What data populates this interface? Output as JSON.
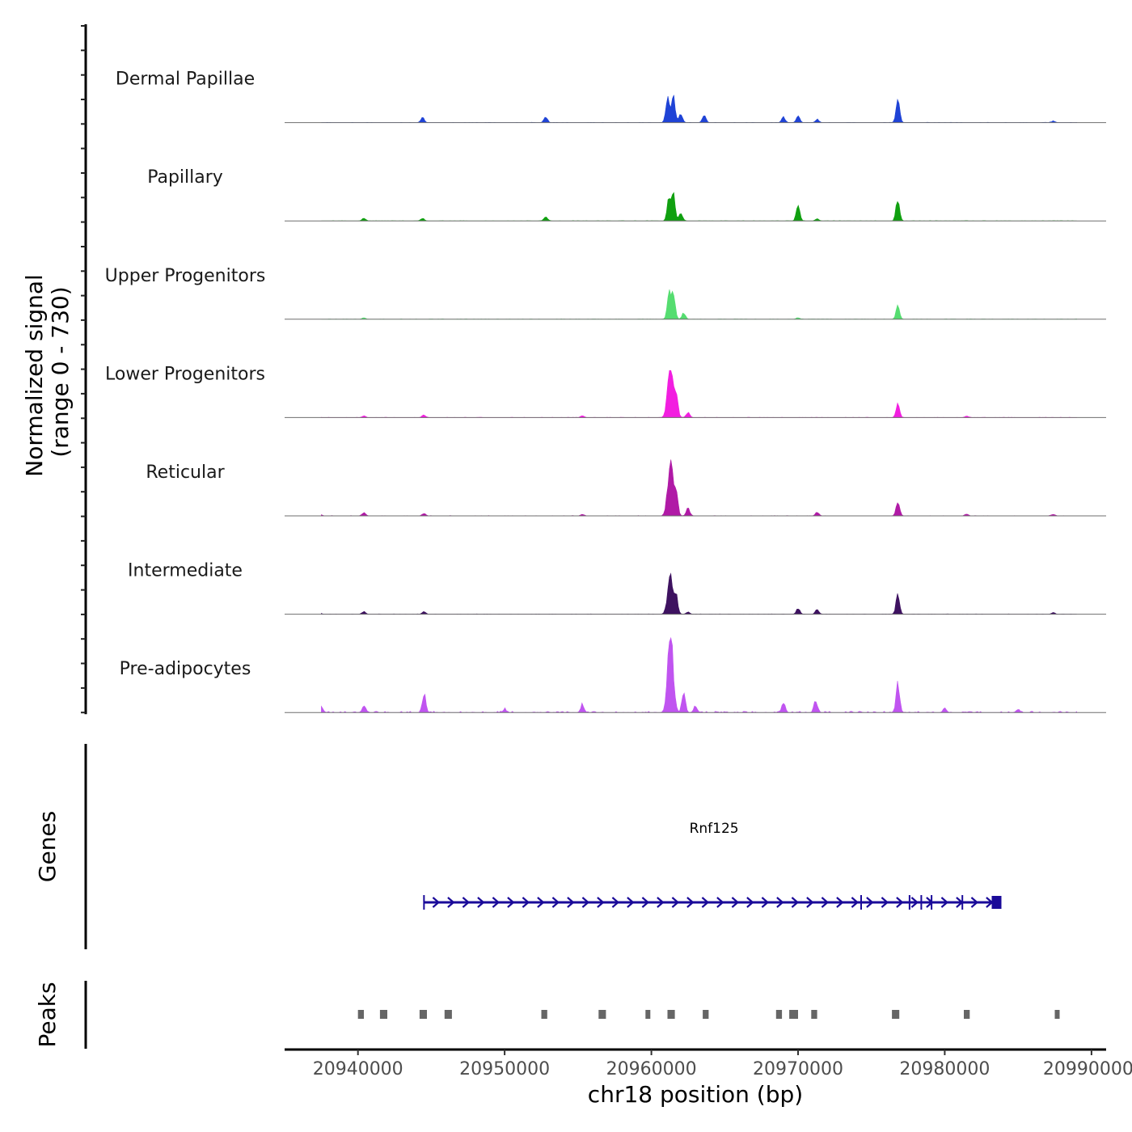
{
  "chart_data": {
    "type": "area",
    "title": "",
    "chromosome": "chr18",
    "xlabel": "chr18 position (bp)",
    "ylabel": "Normalized signal\n(range 0 - 730)",
    "ylabel_lines": [
      "Normalized signal",
      "(range 0 - 730)"
    ],
    "ylim": [
      0,
      730
    ],
    "xlim": [
      20935000,
      20991000
    ],
    "x_ticks": [
      20940000,
      20950000,
      20960000,
      20970000,
      20980000,
      20990000
    ],
    "x_tick_labels": [
      "20940000",
      "20950000",
      "20960000",
      "20970000",
      "20980000",
      "20990000"
    ],
    "series": [
      {
        "name": "Dermal Papillae",
        "color": "#1f43d6",
        "peaks": [
          {
            "x": 20944400,
            "value": 45
          },
          {
            "x": 20952800,
            "value": 55
          },
          {
            "x": 20961100,
            "value": 240
          },
          {
            "x": 20961500,
            "value": 250
          },
          {
            "x": 20962000,
            "value": 80
          },
          {
            "x": 20963600,
            "value": 70
          },
          {
            "x": 20969000,
            "value": 50
          },
          {
            "x": 20970000,
            "value": 60
          },
          {
            "x": 20971300,
            "value": 30
          },
          {
            "x": 20976800,
            "value": 230
          },
          {
            "x": 20987400,
            "value": 15
          }
        ]
      },
      {
        "name": "Papillary",
        "color": "#10a010",
        "peaks": [
          {
            "x": 20940400,
            "value": 25
          },
          {
            "x": 20944400,
            "value": 25
          },
          {
            "x": 20952800,
            "value": 40
          },
          {
            "x": 20961200,
            "value": 210
          },
          {
            "x": 20961500,
            "value": 240
          },
          {
            "x": 20962000,
            "value": 70
          },
          {
            "x": 20970000,
            "value": 150
          },
          {
            "x": 20971300,
            "value": 20
          },
          {
            "x": 20976800,
            "value": 210
          }
        ]
      },
      {
        "name": "Upper Progenitors",
        "color": "#55dd70",
        "peaks": [
          {
            "x": 20940400,
            "value": 15
          },
          {
            "x": 20961200,
            "value": 240
          },
          {
            "x": 20961500,
            "value": 250
          },
          {
            "x": 20962200,
            "value": 60
          },
          {
            "x": 20970000,
            "value": 15
          },
          {
            "x": 20976800,
            "value": 120
          }
        ]
      },
      {
        "name": "Lower Progenitors",
        "color": "#f21ee0",
        "peaks": [
          {
            "x": 20940400,
            "value": 15
          },
          {
            "x": 20944500,
            "value": 25
          },
          {
            "x": 20955300,
            "value": 20
          },
          {
            "x": 20961300,
            "value": 480
          },
          {
            "x": 20961700,
            "value": 200
          },
          {
            "x": 20962500,
            "value": 50
          },
          {
            "x": 20976800,
            "value": 130
          },
          {
            "x": 20981500,
            "value": 15
          }
        ]
      },
      {
        "name": "Reticular",
        "color": "#b01aa6",
        "peaks": [
          {
            "x": 20937400,
            "value": 15
          },
          {
            "x": 20940400,
            "value": 30
          },
          {
            "x": 20944500,
            "value": 20
          },
          {
            "x": 20955300,
            "value": 15
          },
          {
            "x": 20961300,
            "value": 490
          },
          {
            "x": 20961700,
            "value": 200
          },
          {
            "x": 20962500,
            "value": 70
          },
          {
            "x": 20971300,
            "value": 35
          },
          {
            "x": 20976800,
            "value": 140
          },
          {
            "x": 20981500,
            "value": 15
          },
          {
            "x": 20987400,
            "value": 15
          }
        ]
      },
      {
        "name": "Intermediate",
        "color": "#3e1260",
        "peaks": [
          {
            "x": 20937400,
            "value": 10
          },
          {
            "x": 20940400,
            "value": 25
          },
          {
            "x": 20944500,
            "value": 25
          },
          {
            "x": 20961300,
            "value": 350
          },
          {
            "x": 20961700,
            "value": 150
          },
          {
            "x": 20962500,
            "value": 20
          },
          {
            "x": 20970000,
            "value": 55
          },
          {
            "x": 20971300,
            "value": 45
          },
          {
            "x": 20976800,
            "value": 190
          },
          {
            "x": 20987400,
            "value": 15
          }
        ]
      },
      {
        "name": "Pre-adipocytes",
        "color": "#c054f0",
        "peaks": [
          {
            "x": 20937500,
            "value": 50
          },
          {
            "x": 20940400,
            "value": 60
          },
          {
            "x": 20944500,
            "value": 170
          },
          {
            "x": 20950000,
            "value": 30
          },
          {
            "x": 20955300,
            "value": 75
          },
          {
            "x": 20961300,
            "value": 730
          },
          {
            "x": 20962200,
            "value": 180
          },
          {
            "x": 20963000,
            "value": 60
          },
          {
            "x": 20969000,
            "value": 90
          },
          {
            "x": 20971200,
            "value": 110
          },
          {
            "x": 20976800,
            "value": 280
          },
          {
            "x": 20980000,
            "value": 40
          },
          {
            "x": 20985000,
            "value": 30
          }
        ]
      }
    ],
    "genes_track": {
      "label": "Genes",
      "genes": [
        {
          "name": "Rnf125",
          "start": 20944500,
          "end": 20983500,
          "strand": "+",
          "color": "#1a0a99",
          "exon_marks": [
            20944500,
            20974300,
            20977600,
            20978400,
            20979100,
            20981200
          ],
          "final_exon": [
            20983200,
            20983600
          ]
        }
      ]
    },
    "peaks_track": {
      "label": "Peaks",
      "color": "#666666",
      "regions": [
        [
          20940000,
          20940400
        ],
        [
          20941500,
          20942000
        ],
        [
          20944200,
          20944700
        ],
        [
          20945900,
          20946400
        ],
        [
          20952500,
          20952900
        ],
        [
          20956400,
          20956900
        ],
        [
          20959600,
          20959900
        ],
        [
          20961100,
          20961600
        ],
        [
          20963500,
          20963900
        ],
        [
          20968500,
          20968900
        ],
        [
          20969400,
          20970000
        ],
        [
          20970900,
          20971300
        ],
        [
          20976400,
          20976900
        ],
        [
          20981300,
          20981700
        ],
        [
          20987500,
          20987700
        ]
      ]
    }
  }
}
